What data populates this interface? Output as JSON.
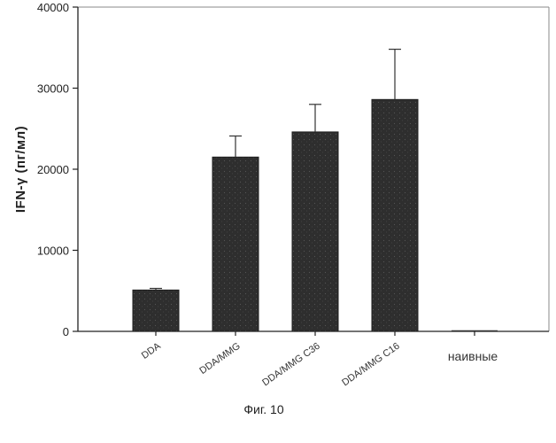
{
  "chart_data": {
    "type": "bar",
    "title": "",
    "xlabel": "",
    "ylabel": "IFN-γ (пг/мл)",
    "caption": "Фиг. 10",
    "categories": [
      "DDA",
      "DDA/MMG",
      "DDA/MMG C36",
      "DDA/MMG C16",
      "наивные"
    ],
    "values": [
      5100,
      21500,
      24600,
      28600,
      0
    ],
    "errors": [
      200,
      2600,
      3400,
      6200,
      0
    ],
    "ylim": [
      0,
      40000
    ],
    "yticks": [
      0,
      10000,
      20000,
      30000,
      40000
    ],
    "grid": false,
    "legend": "none",
    "bar_color": "#2e2e2e"
  }
}
